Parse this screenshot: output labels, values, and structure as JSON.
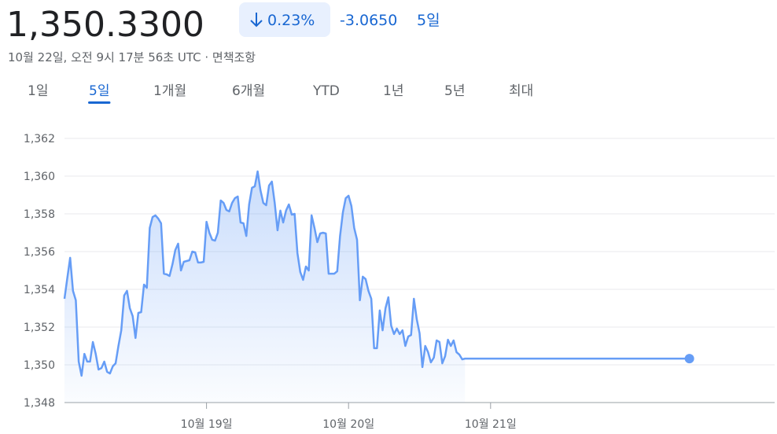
{
  "header": {
    "price": "1,350.3300",
    "change_percent": "0.23%",
    "change_value": "-3.0650",
    "period": "5일",
    "timestamp": "10월 22일, 오전 9시 17분 56초 UTC · 면책조항"
  },
  "tabs": {
    "items": [
      "1일",
      "5일",
      "1개월",
      "6개월",
      "YTD",
      "1년",
      "5년",
      "최대"
    ],
    "selected": 1
  },
  "chart_data": {
    "type": "line",
    "x": [
      18,
      18.02,
      18.04,
      18.06,
      18.08,
      18.1,
      18.12,
      18.14,
      18.16,
      18.18,
      18.2,
      18.22,
      18.24,
      18.26,
      18.28,
      18.3,
      18.32,
      18.34,
      18.36,
      18.38,
      18.4,
      18.42,
      18.44,
      18.46,
      18.48,
      18.5,
      18.52,
      18.54,
      18.56,
      18.58,
      18.6,
      18.62,
      18.64,
      18.66,
      18.68,
      18.7,
      18.72,
      18.74,
      18.76,
      18.78,
      18.8,
      18.82,
      18.84,
      18.86,
      18.88,
      18.9,
      18.92,
      18.94,
      18.96,
      18.98,
      19,
      19.02,
      19.04,
      19.06,
      19.08,
      19.1,
      19.12,
      19.14,
      19.16,
      19.18,
      19.2,
      19.22,
      19.24,
      19.26,
      19.28,
      19.3,
      19.32,
      19.34,
      19.36,
      19.38,
      19.4,
      19.42,
      19.44,
      19.46,
      19.48,
      19.5,
      19.52,
      19.54,
      19.56,
      19.58,
      19.6,
      19.62,
      19.64,
      19.66,
      19.68,
      19.7,
      19.72,
      19.74,
      19.76,
      19.78,
      19.8,
      19.82,
      19.84,
      19.86,
      19.88,
      19.9,
      19.92,
      19.94,
      19.96,
      19.98,
      20,
      20.02,
      20.04,
      20.06,
      20.08,
      20.1,
      20.12,
      20.14,
      20.16,
      20.18,
      20.2,
      20.22,
      20.24,
      20.26,
      20.28,
      20.3,
      20.32,
      20.34,
      20.36,
      20.38,
      20.4,
      20.42,
      20.44,
      20.46,
      20.48,
      20.5,
      20.52,
      20.54,
      20.56,
      20.58,
      20.6,
      20.62,
      20.64,
      20.66,
      20.68,
      20.7,
      20.72,
      20.74,
      20.76,
      20.78,
      20.8,
      20.82,
      22.4
    ],
    "series": [
      {
        "color": "#669df6",
        "values": [
          1353.5,
          1354.6,
          1355.67,
          1353.92,
          1353.42,
          1350.17,
          1349.42,
          1350.58,
          1350.17,
          1350.17,
          1351.21,
          1350.58,
          1349.75,
          1349.83,
          1350.17,
          1349.63,
          1349.54,
          1349.92,
          1350.08,
          1351,
          1351.83,
          1353.67,
          1353.92,
          1353,
          1352.58,
          1351.42,
          1352.75,
          1352.79,
          1354.25,
          1354.08,
          1357.25,
          1357.83,
          1357.92,
          1357.75,
          1357.5,
          1354.83,
          1354.79,
          1354.71,
          1355.33,
          1356.08,
          1356.42,
          1355,
          1355.46,
          1355.5,
          1355.54,
          1356,
          1355.96,
          1355.42,
          1355.42,
          1355.46,
          1357.58,
          1357,
          1356.63,
          1356.58,
          1357,
          1358.71,
          1358.58,
          1358.21,
          1358.13,
          1358.58,
          1358.83,
          1358.92,
          1357.54,
          1357.5,
          1356.83,
          1358.5,
          1359.38,
          1359.46,
          1360.25,
          1359.25,
          1358.58,
          1358.46,
          1359.5,
          1359.71,
          1358.58,
          1357.13,
          1358.17,
          1357.54,
          1358.17,
          1358.5,
          1357.96,
          1358,
          1355.92,
          1354.92,
          1354.5,
          1355.21,
          1355,
          1357.92,
          1357.25,
          1356.5,
          1356.96,
          1357,
          1356.96,
          1354.83,
          1354.83,
          1354.83,
          1354.96,
          1356.83,
          1358.08,
          1358.83,
          1358.96,
          1358.42,
          1357.25,
          1356.63,
          1353.42,
          1354.67,
          1354.54,
          1353.92,
          1353.5,
          1350.88,
          1350.88,
          1352.88,
          1351.83,
          1353,
          1353.58,
          1352.08,
          1351.63,
          1351.92,
          1351.63,
          1351.83,
          1351,
          1351.5,
          1351.58,
          1353.5,
          1352.42,
          1351.67,
          1349.88,
          1351,
          1350.67,
          1350.13,
          1350.38,
          1351.29,
          1351.21,
          1350.08,
          1350.46,
          1351.33,
          1351,
          1351.29,
          1350.67,
          1350.54,
          1350.29,
          1350.33,
          1350.33
        ]
      }
    ],
    "xlim": [
      18,
      23
    ],
    "xticks": [
      {
        "value": 19,
        "label": "10월 19일"
      },
      {
        "value": 20,
        "label": "10월 20일"
      },
      {
        "value": 21,
        "label": "10월 21일"
      }
    ],
    "ylim": [
      1348,
      1362
    ],
    "yticks": [
      {
        "value": 1348,
        "label": "1,348"
      },
      {
        "value": 1350,
        "label": "1,350"
      },
      {
        "value": 1352,
        "label": "1,352"
      },
      {
        "value": 1354,
        "label": "1,354"
      },
      {
        "value": 1356,
        "label": "1,356"
      },
      {
        "value": 1358,
        "label": "1,358"
      },
      {
        "value": 1360,
        "label": "1,360"
      },
      {
        "value": 1362,
        "label": "1,362"
      }
    ],
    "grid": true
  }
}
